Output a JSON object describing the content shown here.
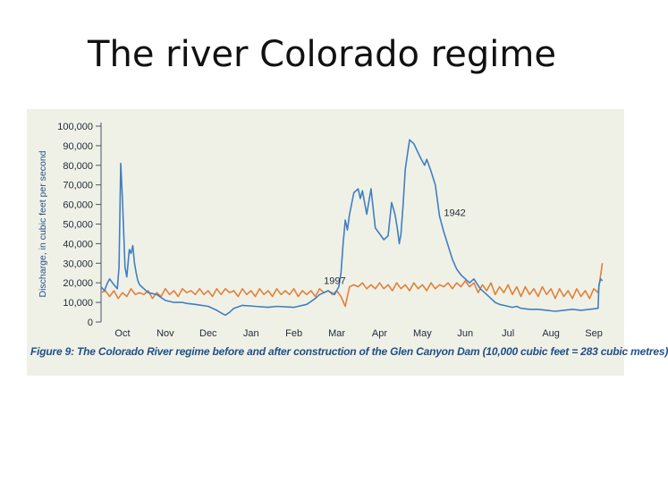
{
  "slide": {
    "title": "The river Colorado regime"
  },
  "figure": {
    "caption": "Figure 9: The Colorado River regime before and after construction of the Glen Canyon Dam (10,000 cubic feet = 283 cubic metres)"
  },
  "chart_data": {
    "type": "line",
    "title": "",
    "xlabel": "",
    "ylabel": "Discharge, in cubic feet per second",
    "ylim": [
      0,
      100000
    ],
    "xlim": [
      0,
      12
    ],
    "ytick_labels": [
      "0",
      "10,000",
      "20,000",
      "30,000",
      "40,000",
      "50,000",
      "60,000",
      "70,000",
      "80,000",
      "90,000",
      "100,000"
    ],
    "ytick_values": [
      0,
      10000,
      20000,
      30000,
      40000,
      50000,
      60000,
      70000,
      80000,
      90000,
      100000
    ],
    "xtick_labels": [
      "Oct",
      "Nov",
      "Dec",
      "Jan",
      "Feb",
      "Mar",
      "Apr",
      "May",
      "Jun",
      "Jul",
      "Aug",
      "Sep"
    ],
    "grid": false,
    "series": [
      {
        "name": "1942",
        "color": "#3f7fc4",
        "x": [
          0.0,
          0.08,
          0.15,
          0.2,
          0.3,
          0.38,
          0.42,
          0.46,
          0.5,
          0.56,
          0.6,
          0.66,
          0.7,
          0.74,
          0.78,
          0.82,
          0.86,
          0.9,
          0.95,
          1.0,
          1.1,
          1.3,
          1.5,
          1.7,
          1.9,
          2.0,
          2.2,
          2.5,
          2.7,
          2.85,
          2.9,
          3.0,
          3.1,
          3.3,
          3.6,
          3.9,
          4.1,
          4.5,
          4.8,
          5.0,
          5.1,
          5.3,
          5.45,
          5.55,
          5.6,
          5.65,
          5.7,
          5.75,
          5.8,
          5.9,
          6.0,
          6.05,
          6.1,
          6.2,
          6.3,
          6.4,
          6.5,
          6.6,
          6.7,
          6.78,
          6.86,
          6.92,
          6.96,
          7.0,
          7.05,
          7.1,
          7.2,
          7.3,
          7.45,
          7.55,
          7.6,
          7.7,
          7.8,
          7.9,
          8.0,
          8.1,
          8.2,
          8.3,
          8.4,
          8.5,
          8.6,
          8.7,
          8.85,
          9.0,
          9.1,
          9.2,
          9.3,
          9.4,
          9.5,
          9.6,
          9.7,
          9.8,
          10.0,
          10.2,
          10.4,
          10.6,
          10.8,
          11.0,
          11.2,
          11.4,
          11.6,
          11.62,
          11.66,
          11.7
        ],
        "values": [
          18000,
          16000,
          20000,
          22000,
          19000,
          17000,
          28000,
          81000,
          62000,
          28000,
          23000,
          37000,
          35000,
          39000,
          30000,
          25000,
          21000,
          19000,
          18000,
          17000,
          15000,
          14000,
          11000,
          10000,
          10000,
          9500,
          9000,
          8000,
          6000,
          4000,
          3500,
          5000,
          7000,
          8500,
          8000,
          7500,
          8000,
          7500,
          9000,
          12000,
          14000,
          16000,
          14000,
          18000,
          25000,
          40000,
          52000,
          47000,
          55000,
          66000,
          68000,
          63000,
          67000,
          55000,
          68000,
          48000,
          45000,
          42000,
          44000,
          61000,
          55000,
          47000,
          40000,
          45000,
          60000,
          78000,
          93000,
          91000,
          84000,
          80000,
          83000,
          77000,
          70000,
          54000,
          46000,
          39000,
          32000,
          27000,
          24000,
          22000,
          20000,
          22000,
          17000,
          14000,
          12000,
          10000,
          9000,
          8500,
          8000,
          7500,
          8000,
          7000,
          6500,
          6500,
          6000,
          5500,
          6000,
          6500,
          6000,
          6500,
          7000,
          19000,
          22000,
          21000
        ]
      },
      {
        "name": "1997",
        "color": "#e0803a",
        "x": [
          0.0,
          0.1,
          0.2,
          0.3,
          0.4,
          0.5,
          0.6,
          0.7,
          0.8,
          0.9,
          1.0,
          1.1,
          1.2,
          1.3,
          1.4,
          1.5,
          1.6,
          1.7,
          1.8,
          1.9,
          2.0,
          2.1,
          2.2,
          2.3,
          2.4,
          2.5,
          2.6,
          2.7,
          2.8,
          2.9,
          3.0,
          3.1,
          3.2,
          3.3,
          3.4,
          3.5,
          3.6,
          3.7,
          3.8,
          3.9,
          4.0,
          4.1,
          4.2,
          4.3,
          4.4,
          4.5,
          4.6,
          4.7,
          4.8,
          4.9,
          5.0,
          5.1,
          5.2,
          5.3,
          5.4,
          5.5,
          5.6,
          5.7,
          5.8,
          5.9,
          6.0,
          6.1,
          6.2,
          6.3,
          6.4,
          6.5,
          6.6,
          6.7,
          6.8,
          6.9,
          7.0,
          7.1,
          7.2,
          7.3,
          7.4,
          7.5,
          7.6,
          7.7,
          7.8,
          7.9,
          8.0,
          8.1,
          8.2,
          8.3,
          8.4,
          8.5,
          8.6,
          8.7,
          8.8,
          8.9,
          9.0,
          9.1,
          9.2,
          9.3,
          9.4,
          9.5,
          9.6,
          9.7,
          9.8,
          9.9,
          10.0,
          10.1,
          10.2,
          10.3,
          10.4,
          10.5,
          10.6,
          10.7,
          10.8,
          10.9,
          11.0,
          11.1,
          11.2,
          11.3,
          11.4,
          11.5,
          11.6,
          11.7
        ],
        "values": [
          15000,
          16000,
          13000,
          16000,
          12000,
          15000,
          13000,
          17000,
          14000,
          15000,
          14000,
          16000,
          12000,
          15000,
          13000,
          17000,
          14000,
          16000,
          13000,
          17000,
          15000,
          16000,
          14000,
          17000,
          14000,
          16000,
          13000,
          17000,
          14000,
          17000,
          15000,
          16000,
          13000,
          17000,
          14000,
          16000,
          13000,
          17000,
          14000,
          16000,
          13000,
          17000,
          14000,
          16000,
          14000,
          17000,
          13000,
          16000,
          14000,
          16000,
          13000,
          17000,
          15000,
          16000,
          14000,
          16000,
          13000,
          8000,
          18000,
          19000,
          18000,
          20000,
          17000,
          19000,
          17000,
          20000,
          17000,
          19000,
          16000,
          20000,
          17000,
          19000,
          16000,
          20000,
          17000,
          19000,
          16000,
          20000,
          17000,
          19000,
          18000,
          20000,
          17000,
          20000,
          18000,
          21000,
          18000,
          20000,
          15000,
          19000,
          16000,
          20000,
          14000,
          18000,
          15000,
          19000,
          14000,
          18000,
          13000,
          18000,
          14000,
          17000,
          13000,
          18000,
          14000,
          17000,
          12000,
          17000,
          13000,
          16000,
          12000,
          17000,
          13000,
          16000,
          12000,
          17000,
          15000,
          30000
        ]
      }
    ]
  }
}
